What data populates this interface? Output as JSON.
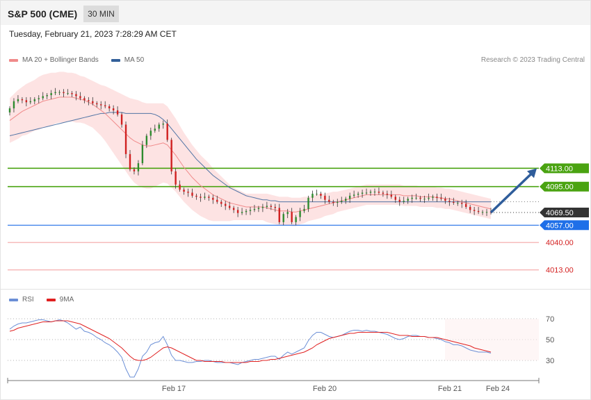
{
  "header": {
    "title": "S&P 500 (CME)",
    "timeframe": "30 MIN",
    "timestamp": "Tuesday, February 21, 2023 7:28:29 AM CET"
  },
  "credit": "Research © 2023 Trading Central",
  "colors": {
    "ma20": "#f08a8a",
    "ma50": "#33609a",
    "bands": "#fde3e3",
    "bull": "#2e8b2e",
    "bear": "#d02020",
    "resistance": "#4aa311",
    "support": "#1f6fe8",
    "support_weak": "#f4a5a5",
    "last_price_bg": "#333333",
    "rsi": "#6b8fd6",
    "rsi_ma": "#e02020",
    "forecast_arrow": "#2f5d9b"
  },
  "chart_data": [
    {
      "type": "candlestick",
      "legend": [
        {
          "name": "MA 20 + Bollinger Bands",
          "color": "#f08a8a"
        },
        {
          "name": "MA 50",
          "color": "#33609a"
        }
      ],
      "ylim": [
        4005,
        4240
      ],
      "levels": [
        {
          "value": 4113.0,
          "label": "4113.00",
          "kind": "resistance"
        },
        {
          "value": 4095.0,
          "label": "4095.00",
          "kind": "resistance"
        },
        {
          "value": 4069.5,
          "label": "4069.50",
          "kind": "last"
        },
        {
          "value": 4057.0,
          "label": "4057.00",
          "kind": "support"
        },
        {
          "value": 4040.0,
          "label": "4040.00",
          "kind": "support-weak"
        },
        {
          "value": 4013.0,
          "label": "4013.00",
          "kind": "support-weak"
        }
      ],
      "close": [
        4172,
        4179,
        4181,
        4180,
        4178,
        4179,
        4181,
        4182,
        4184,
        4185,
        4187,
        4188,
        4188,
        4187,
        4187,
        4186,
        4184,
        4182,
        4180,
        4179,
        4177,
        4176,
        4175,
        4174,
        4172,
        4170,
        4166,
        4156,
        4127,
        4112,
        4110,
        4118,
        4136,
        4145,
        4150,
        4152,
        4156,
        4157,
        4141,
        4110,
        4097,
        4092,
        4090,
        4089,
        4086,
        4085,
        4084,
        4085,
        4084,
        4082,
        4080,
        4078,
        4076,
        4074,
        4072,
        4069,
        4070,
        4071,
        4072,
        4073,
        4074,
        4075,
        4076,
        4075,
        4074,
        4060,
        4068,
        4070,
        4060,
        4065,
        4071,
        4073,
        4084,
        4088,
        4088,
        4086,
        4082,
        4080,
        4079,
        4080,
        4081,
        4083,
        4086,
        4087,
        4088,
        4089,
        4089,
        4090,
        4090,
        4089,
        4088,
        4087,
        4085,
        4082,
        4080,
        4081,
        4083,
        4084,
        4084,
        4083,
        4083,
        4084,
        4085,
        4084,
        4083,
        4081,
        4080,
        4079,
        4079,
        4078,
        4075,
        4072,
        4071,
        4070,
        4070,
        4070,
        4069.5
      ],
      "ma20": [
        4160,
        4163,
        4166,
        4169,
        4171,
        4173,
        4175,
        4177,
        4179,
        4180,
        4181,
        4182,
        4183,
        4183,
        4183,
        4183,
        4182,
        4181,
        4180,
        4178,
        4176,
        4173,
        4170,
        4167,
        4163,
        4159,
        4155,
        4151,
        4147,
        4143,
        4140,
        4138,
        4136,
        4135,
        4135,
        4136,
        4137,
        4138,
        4136,
        4131,
        4126,
        4120,
        4114,
        4109,
        4104,
        4100,
        4096,
        4093,
        4090,
        4087,
        4085,
        4083,
        4081,
        4079,
        4078,
        4077,
        4076,
        4075,
        4075,
        4075,
        4075,
        4075,
        4074,
        4073,
        4072,
        4071,
        4071,
        4071,
        4070,
        4070,
        4071,
        4072,
        4073,
        4074,
        4075,
        4076,
        4077,
        4078,
        4079,
        4080,
        4081,
        4082,
        4083,
        4084,
        4085,
        4086,
        4087,
        4087,
        4087,
        4087,
        4087,
        4087,
        4087,
        4087,
        4087,
        4086,
        4086,
        4086,
        4086,
        4085,
        4085,
        4085,
        4085,
        4084,
        4084,
        4083,
        4083,
        4082,
        4081,
        4080,
        4079,
        4078,
        4077,
        4076,
        4075,
        4074,
        4073
      ],
      "ma50": [
        4145,
        4146,
        4147,
        4148,
        4149,
        4150,
        4151,
        4152,
        4153,
        4154,
        4155,
        4156,
        4157,
        4158,
        4159,
        4160,
        4161,
        4162,
        4163,
        4164,
        4165,
        4166,
        4167,
        4167,
        4168,
        4168,
        4168,
        4168,
        4167,
        4167,
        4167,
        4167,
        4167,
        4167,
        4167,
        4166,
        4164,
        4161,
        4157,
        4152,
        4147,
        4142,
        4137,
        4132,
        4127,
        4122,
        4118,
        4114,
        4110,
        4106,
        4103,
        4100,
        4097,
        4094,
        4092,
        4090,
        4088,
        4086,
        4085,
        4084,
        4083,
        4082,
        4082,
        4081,
        4081,
        4080,
        4080,
        4080,
        4080,
        4080,
        4080,
        4080,
        4080,
        4080,
        4080,
        4080,
        4080,
        4080,
        4080,
        4080,
        4080,
        4080,
        4080,
        4080,
        4080,
        4080,
        4080,
        4080,
        4080,
        4080,
        4080,
        4080,
        4080,
        4080,
        4080,
        4080,
        4080,
        4080,
        4080,
        4080,
        4080,
        4080,
        4080,
        4080,
        4080,
        4080,
        4080,
        4080,
        4080,
        4080,
        4080,
        4080,
        4080,
        4080,
        4080,
        4080,
        4080
      ],
      "band_width": [
        22,
        23,
        24,
        24,
        25,
        25,
        25,
        26,
        26,
        26,
        26,
        25,
        25,
        25,
        24,
        24,
        24,
        23,
        23,
        23,
        23,
        24,
        25,
        27,
        29,
        31,
        33,
        35,
        37,
        39,
        41,
        42,
        42,
        42,
        42,
        41,
        40,
        39,
        38,
        37,
        36,
        35,
        34,
        33,
        32,
        31,
        30,
        29,
        28,
        26,
        24,
        22,
        20,
        18,
        16,
        15,
        14,
        13,
        13,
        13,
        13,
        13,
        14,
        14,
        14,
        14,
        14,
        14,
        14,
        14,
        13,
        13,
        12,
        12,
        12,
        12,
        11,
        11,
        11,
        10,
        10,
        10,
        10,
        10,
        10,
        10,
        10,
        10,
        10,
        10,
        10,
        10,
        10,
        10,
        10,
        10,
        10,
        10,
        10,
        10,
        10,
        10,
        10,
        10,
        10,
        10,
        10,
        10,
        10,
        10,
        10,
        10,
        10,
        10,
        10,
        10,
        10
      ],
      "forecast": {
        "from": 4069.5,
        "to": 4113.0
      }
    },
    {
      "type": "line",
      "legend": [
        {
          "name": "RSI",
          "color": "#6b8fd6"
        },
        {
          "name": "9MA",
          "color": "#e02020"
        }
      ],
      "ylim": [
        10,
        80
      ],
      "y_ticks": [
        70,
        50,
        30
      ],
      "x_ticks": [
        "Feb 17",
        "Feb 20",
        "Feb 21",
        "Feb 24"
      ],
      "rsi": [
        60,
        63,
        65,
        66,
        66,
        67,
        68,
        69,
        69,
        68,
        67,
        68,
        69,
        68,
        66,
        63,
        60,
        62,
        58,
        57,
        55,
        52,
        50,
        47,
        45,
        42,
        38,
        33,
        22,
        14,
        14,
        22,
        34,
        38,
        45,
        47,
        48,
        53,
        45,
        35,
        30,
        30,
        29,
        28,
        28,
        29,
        29,
        30,
        30,
        29,
        28,
        28,
        28,
        28,
        27,
        26,
        28,
        29,
        30,
        31,
        31,
        32,
        33,
        34,
        34,
        31,
        35,
        38,
        36,
        38,
        40,
        42,
        49,
        54,
        57,
        57,
        55,
        53,
        52,
        53,
        54,
        56,
        58,
        59,
        59,
        58,
        59,
        58,
        58,
        57,
        56,
        55,
        53,
        51,
        50,
        51,
        53,
        54,
        54,
        53,
        53,
        52,
        52,
        51,
        50,
        48,
        47,
        45,
        45,
        44,
        42,
        40,
        39,
        38,
        38,
        38,
        37
      ],
      "ma9": [
        58,
        59,
        61,
        62,
        63,
        64,
        65,
        66,
        67,
        67,
        67,
        68,
        68,
        68,
        68,
        67,
        66,
        65,
        63,
        61,
        59,
        57,
        55,
        53,
        51,
        48,
        45,
        42,
        38,
        34,
        31,
        30,
        30,
        31,
        33,
        36,
        39,
        42,
        43,
        42,
        40,
        38,
        36,
        34,
        32,
        30,
        30,
        29,
        29,
        29,
        29,
        29,
        28,
        28,
        28,
        28,
        28,
        28,
        29,
        29,
        29,
        30,
        30,
        31,
        31,
        32,
        33,
        34,
        35,
        36,
        37,
        38,
        40,
        42,
        45,
        47,
        49,
        51,
        52,
        53,
        54,
        55,
        56,
        56,
        57,
        57,
        57,
        57,
        57,
        57,
        57,
        57,
        56,
        55,
        54,
        54,
        54,
        53,
        53,
        53,
        53,
        52,
        52,
        52,
        51,
        50,
        49,
        48,
        47,
        46,
        45,
        44,
        42,
        41,
        40,
        39,
        38
      ]
    }
  ]
}
